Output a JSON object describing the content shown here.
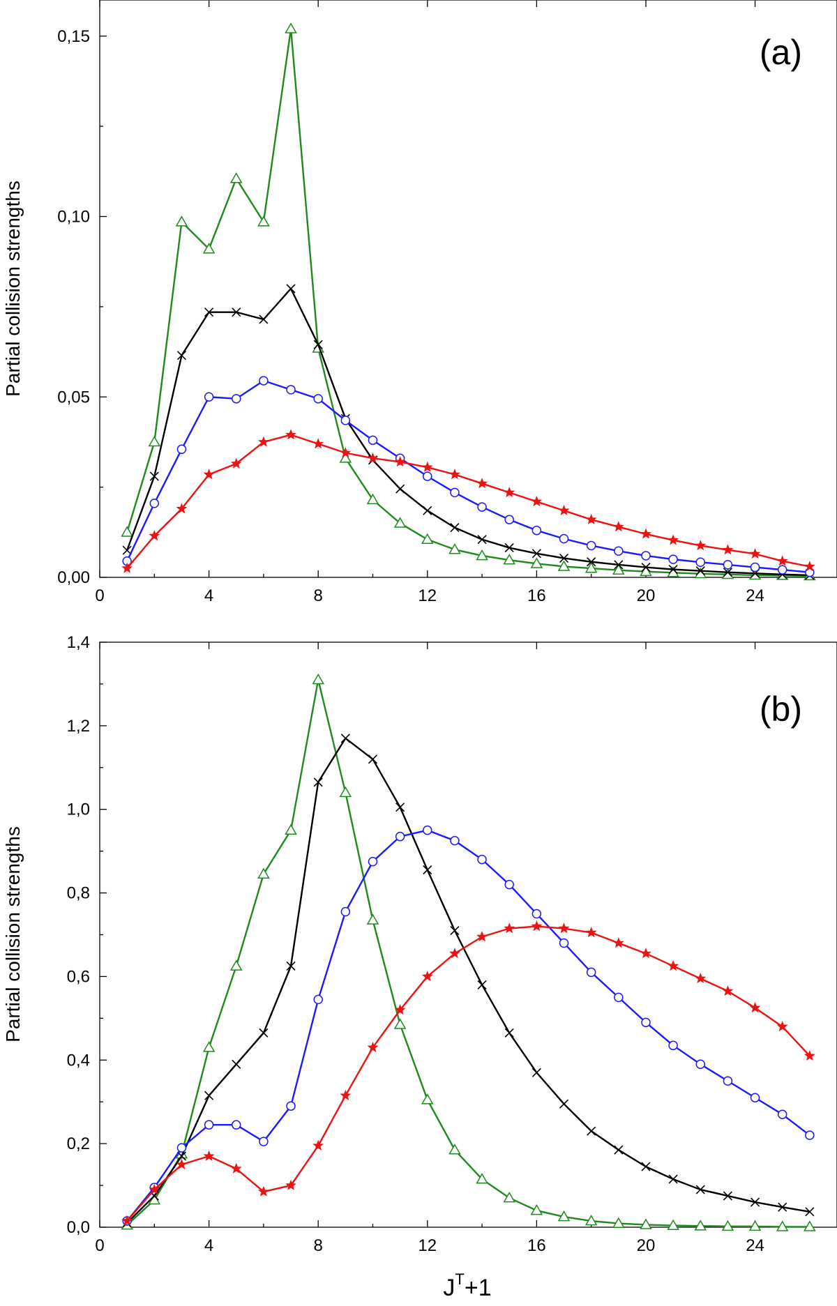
{
  "chart_data": [
    {
      "type": "line",
      "panel_label": "(a)",
      "xlabel": "",
      "ylabel": "Partial collision strengths",
      "xlim": [
        0,
        27
      ],
      "ylim": [
        0,
        0.16
      ],
      "xticks": [
        0,
        4,
        8,
        12,
        16,
        20,
        24
      ],
      "xtick_labels": [
        "0",
        "4",
        "8",
        "12",
        "16",
        "20",
        "24"
      ],
      "yticks": [
        0,
        0.05,
        0.1,
        0.15
      ],
      "ytick_labels": [
        "0,00",
        "0,05",
        "0,10",
        "0,15"
      ],
      "x": [
        1,
        2,
        3,
        4,
        5,
        6,
        7,
        8,
        9,
        10,
        11,
        12,
        13,
        14,
        15,
        16,
        17,
        18,
        19,
        20,
        21,
        22,
        23,
        24,
        25,
        26
      ],
      "series": [
        {
          "name": "triangle",
          "marker": "triangle",
          "color": "#1e8a1e",
          "values": [
            0.0125,
            0.0375,
            0.0985,
            0.091,
            0.1105,
            0.0985,
            0.152,
            0.0635,
            0.033,
            0.0215,
            0.015,
            0.0105,
            0.0077,
            0.006,
            0.0048,
            0.0038,
            0.003,
            0.0025,
            0.002,
            0.0016,
            0.0013,
            0.001,
            0.0008,
            0.0006,
            0.0005,
            0.0004
          ]
        },
        {
          "name": "cross",
          "marker": "cross",
          "color": "#000000",
          "values": [
            0.0075,
            0.028,
            0.0615,
            0.0735,
            0.0735,
            0.0715,
            0.08,
            0.0645,
            0.044,
            0.0325,
            0.0245,
            0.0185,
            0.0138,
            0.0105,
            0.0082,
            0.0066,
            0.0053,
            0.0043,
            0.0035,
            0.0028,
            0.0022,
            0.0018,
            0.0014,
            0.0011,
            0.0008,
            0.0006
          ]
        },
        {
          "name": "circle",
          "marker": "circle",
          "color": "#1a1aff",
          "values": [
            0.0045,
            0.0205,
            0.0355,
            0.05,
            0.0495,
            0.0545,
            0.052,
            0.0495,
            0.0435,
            0.038,
            0.033,
            0.028,
            0.0235,
            0.0195,
            0.016,
            0.013,
            0.0107,
            0.0088,
            0.0073,
            0.006,
            0.005,
            0.0042,
            0.0035,
            0.0028,
            0.0021,
            0.0014
          ]
        },
        {
          "name": "star",
          "marker": "star",
          "color": "#ee1111",
          "values": [
            0.0025,
            0.0115,
            0.019,
            0.0285,
            0.0315,
            0.0375,
            0.0395,
            0.037,
            0.0345,
            0.033,
            0.032,
            0.0305,
            0.0285,
            0.026,
            0.0235,
            0.021,
            0.0185,
            0.016,
            0.014,
            0.012,
            0.0103,
            0.0088,
            0.0076,
            0.0065,
            0.0045,
            0.003
          ]
        }
      ]
    },
    {
      "type": "line",
      "panel_label": "(b)",
      "xlabel": "J",
      "xlabel_sup": "T",
      "xlabel_tail": "+1",
      "ylabel": "Partial collision strengths",
      "xlim": [
        0,
        27
      ],
      "ylim": [
        0,
        1.4
      ],
      "xticks": [
        0,
        4,
        8,
        12,
        16,
        20,
        24
      ],
      "xtick_labels": [
        "0",
        "4",
        "8",
        "12",
        "16",
        "20",
        "24"
      ],
      "yticks": [
        0,
        0.2,
        0.4,
        0.6,
        0.8,
        1.0,
        1.2,
        1.4
      ],
      "ytick_labels": [
        "0,0",
        "0,2",
        "0,4",
        "0,6",
        "0,8",
        "1,0",
        "1,2",
        "1,4"
      ],
      "x": [
        1,
        2,
        3,
        4,
        5,
        6,
        7,
        8,
        9,
        10,
        11,
        12,
        13,
        14,
        15,
        16,
        17,
        18,
        19,
        20,
        21,
        22,
        23,
        24,
        25,
        26
      ],
      "series": [
        {
          "name": "triangle",
          "marker": "triangle",
          "color": "#1e8a1e",
          "values": [
            0.005,
            0.065,
            0.175,
            0.43,
            0.625,
            0.845,
            0.95,
            1.31,
            1.04,
            0.735,
            0.485,
            0.305,
            0.185,
            0.115,
            0.07,
            0.04,
            0.025,
            0.015,
            0.009,
            0.006,
            0.004,
            0.003,
            0.002,
            0.002,
            0.001,
            0.001
          ]
        },
        {
          "name": "cross",
          "marker": "cross",
          "color": "#000000",
          "values": [
            0.01,
            0.075,
            0.17,
            0.315,
            0.39,
            0.465,
            0.625,
            1.065,
            1.17,
            1.12,
            1.005,
            0.855,
            0.71,
            0.58,
            0.465,
            0.37,
            0.295,
            0.23,
            0.185,
            0.145,
            0.115,
            0.09,
            0.075,
            0.06,
            0.048,
            0.037
          ]
        },
        {
          "name": "circle",
          "marker": "circle",
          "color": "#1a1aff",
          "values": [
            0.015,
            0.095,
            0.19,
            0.245,
            0.245,
            0.205,
            0.29,
            0.545,
            0.755,
            0.875,
            0.935,
            0.95,
            0.925,
            0.88,
            0.82,
            0.75,
            0.68,
            0.61,
            0.55,
            0.49,
            0.435,
            0.39,
            0.35,
            0.31,
            0.27,
            0.22
          ]
        },
        {
          "name": "star",
          "marker": "star",
          "color": "#ee1111",
          "values": [
            0.015,
            0.09,
            0.15,
            0.17,
            0.14,
            0.085,
            0.1,
            0.195,
            0.315,
            0.43,
            0.52,
            0.6,
            0.655,
            0.695,
            0.715,
            0.72,
            0.715,
            0.705,
            0.68,
            0.655,
            0.625,
            0.595,
            0.565,
            0.525,
            0.48,
            0.41
          ]
        }
      ]
    }
  ]
}
